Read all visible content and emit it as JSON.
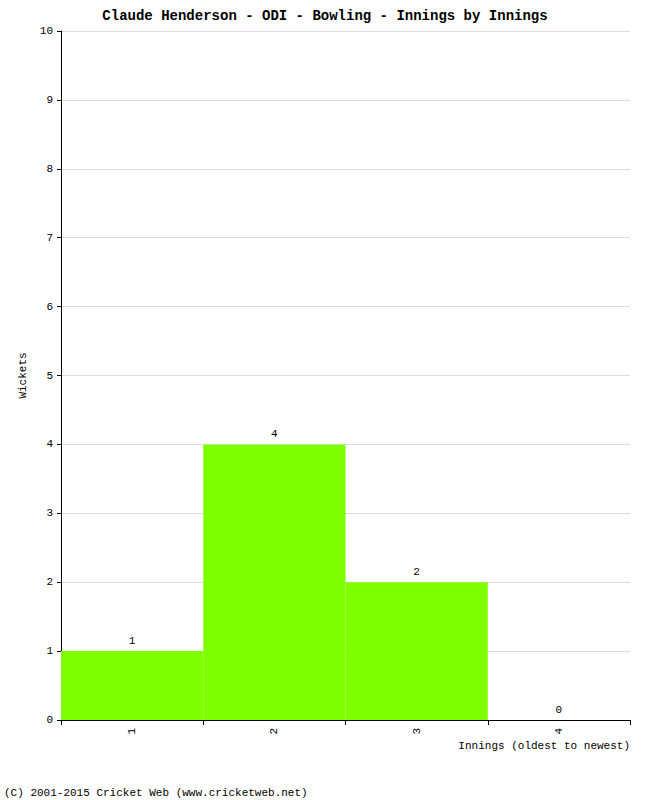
{
  "chart_data": {
    "type": "bar",
    "title": "Claude Henderson - ODI - Bowling - Innings by Innings",
    "x_label": "Innings (oldest to newest)",
    "y_label": "Wickets",
    "categories": [
      "1",
      "2",
      "3",
      "4"
    ],
    "values": [
      1,
      4,
      2,
      0
    ],
    "color": "#7fff00",
    "ylim": [
      0,
      10
    ],
    "yticks": [
      0,
      1,
      2,
      3,
      4,
      5,
      6,
      7,
      8,
      9,
      10
    ],
    "grid": true,
    "data_labels": true,
    "annotations": [
      "(C) 2001-2015 Cricket Web (www.cricketweb.net)"
    ]
  }
}
